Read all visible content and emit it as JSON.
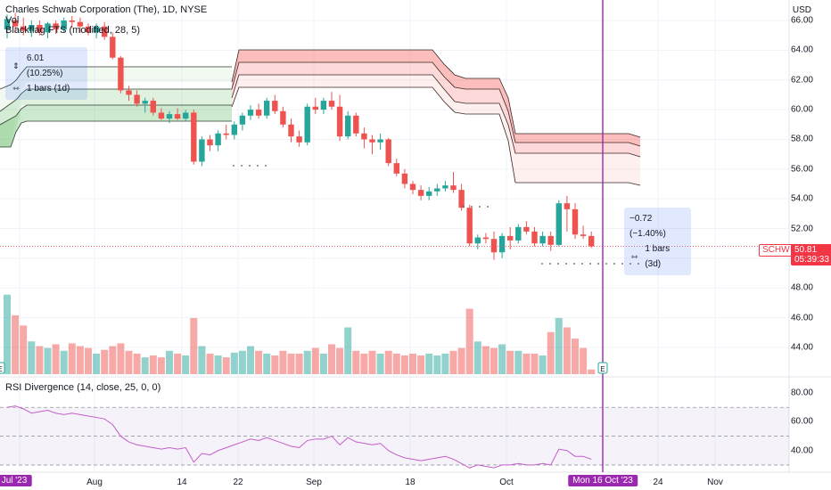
{
  "header": {
    "title": "Charles Schwab Corporation (The), 1D, NYSE",
    "vol_label": "Vol",
    "indicator": "Blackflag FTS (modified, 28, 5)",
    "rsi_label": "RSI Divergence (14, close, 25, 0, 0)",
    "currency": "USD"
  },
  "measure_top": {
    "change": "6.01 (10.25%)",
    "bars": "1 bars (1d)"
  },
  "measure_right": {
    "change": "−0.72 (−1.40%)",
    "bars": "1 bars (3d)"
  },
  "price_tag": {
    "symbol": "SCHW",
    "price": "50.81",
    "countdown": "05:39:33"
  },
  "earnings_marker": "E",
  "x_axis": {
    "labels": [
      "Jul '23",
      "Aug",
      "14",
      "22",
      "Sep",
      "18",
      "Oct",
      "Mon 16 Oct '23",
      "24",
      "Nov"
    ],
    "highlighted": "Mon 16 Oct '23"
  },
  "y_axis": {
    "price_ticks": [
      "66.00",
      "64.00",
      "62.00",
      "60.00",
      "58.00",
      "56.00",
      "54.00",
      "52.00",
      "48.00",
      "46.00",
      "44.00"
    ],
    "rsi_ticks": [
      "80.00",
      "60.00",
      "40.00"
    ]
  },
  "colors": {
    "up": "#26a69a",
    "down": "#ef5350",
    "highlight": "#9c27b0",
    "trail_green": "#4caf50",
    "trail_red": "#f44336"
  },
  "chart_data": {
    "type": "candlestick",
    "title": "Charles Schwab Corporation (The), 1D, NYSE",
    "ylabel": "USD",
    "ylim": [
      42,
      67
    ],
    "candles": [
      {
        "o": 65.4,
        "h": 66.4,
        "l": 64.8,
        "c": 66.1
      },
      {
        "o": 66.0,
        "h": 66.5,
        "l": 65.2,
        "c": 65.6
      },
      {
        "o": 65.6,
        "h": 66.2,
        "l": 65.0,
        "c": 65.3
      },
      {
        "o": 65.3,
        "h": 66.0,
        "l": 64.9,
        "c": 65.7
      },
      {
        "o": 65.7,
        "h": 66.0,
        "l": 65.0,
        "c": 65.2
      },
      {
        "o": 65.2,
        "h": 65.9,
        "l": 64.8,
        "c": 65.8
      },
      {
        "o": 65.8,
        "h": 66.0,
        "l": 65.1,
        "c": 65.4
      },
      {
        "o": 65.4,
        "h": 66.2,
        "l": 65.2,
        "c": 66.0
      },
      {
        "o": 66.0,
        "h": 66.3,
        "l": 65.5,
        "c": 65.9
      },
      {
        "o": 65.9,
        "h": 66.2,
        "l": 65.2,
        "c": 65.6
      },
      {
        "o": 65.6,
        "h": 65.8,
        "l": 65.0,
        "c": 65.2
      },
      {
        "o": 65.2,
        "h": 65.8,
        "l": 64.8,
        "c": 65.6
      },
      {
        "o": 65.6,
        "h": 65.9,
        "l": 64.7,
        "c": 64.9
      },
      {
        "o": 64.9,
        "h": 65.2,
        "l": 63.4,
        "c": 63.5
      },
      {
        "o": 63.5,
        "h": 63.6,
        "l": 61.1,
        "c": 61.3
      },
      {
        "o": 61.3,
        "h": 61.6,
        "l": 60.6,
        "c": 61.0
      },
      {
        "o": 61.0,
        "h": 61.3,
        "l": 60.2,
        "c": 60.4
      },
      {
        "o": 60.4,
        "h": 60.8,
        "l": 59.8,
        "c": 60.6
      },
      {
        "o": 60.6,
        "h": 60.8,
        "l": 59.6,
        "c": 59.8
      },
      {
        "o": 59.8,
        "h": 60.1,
        "l": 59.3,
        "c": 59.4
      },
      {
        "o": 59.4,
        "h": 59.9,
        "l": 59.1,
        "c": 59.7
      },
      {
        "o": 59.7,
        "h": 60.1,
        "l": 59.3,
        "c": 59.4
      },
      {
        "o": 59.4,
        "h": 60.0,
        "l": 59.2,
        "c": 59.8
      },
      {
        "o": 59.8,
        "h": 60.0,
        "l": 56.3,
        "c": 56.5
      },
      {
        "o": 56.5,
        "h": 58.2,
        "l": 56.2,
        "c": 58.0
      },
      {
        "o": 58.0,
        "h": 58.3,
        "l": 57.2,
        "c": 57.6
      },
      {
        "o": 57.6,
        "h": 58.6,
        "l": 57.2,
        "c": 58.4
      },
      {
        "o": 58.4,
        "h": 59.0,
        "l": 58.0,
        "c": 58.3
      },
      {
        "o": 58.3,
        "h": 59.2,
        "l": 58.0,
        "c": 59.0
      },
      {
        "o": 59.0,
        "h": 59.8,
        "l": 58.6,
        "c": 59.6
      },
      {
        "o": 59.6,
        "h": 60.3,
        "l": 59.3,
        "c": 60.0
      },
      {
        "o": 60.0,
        "h": 60.4,
        "l": 59.4,
        "c": 59.6
      },
      {
        "o": 59.6,
        "h": 60.8,
        "l": 59.4,
        "c": 60.6
      },
      {
        "o": 60.6,
        "h": 61.0,
        "l": 59.7,
        "c": 59.9
      },
      {
        "o": 59.9,
        "h": 60.2,
        "l": 58.8,
        "c": 59.0
      },
      {
        "o": 59.0,
        "h": 59.4,
        "l": 57.8,
        "c": 58.2
      },
      {
        "o": 58.2,
        "h": 58.6,
        "l": 57.5,
        "c": 57.8
      },
      {
        "o": 57.8,
        "h": 60.4,
        "l": 57.6,
        "c": 60.2
      },
      {
        "o": 60.2,
        "h": 60.8,
        "l": 59.7,
        "c": 60.0
      },
      {
        "o": 60.0,
        "h": 60.8,
        "l": 59.7,
        "c": 60.6
      },
      {
        "o": 60.6,
        "h": 61.2,
        "l": 60.0,
        "c": 60.2
      },
      {
        "o": 60.2,
        "h": 61.0,
        "l": 57.9,
        "c": 58.2
      },
      {
        "o": 58.2,
        "h": 59.9,
        "l": 58.0,
        "c": 59.6
      },
      {
        "o": 59.6,
        "h": 59.8,
        "l": 58.2,
        "c": 58.4
      },
      {
        "o": 58.4,
        "h": 58.8,
        "l": 57.4,
        "c": 58.0
      },
      {
        "o": 58.0,
        "h": 58.3,
        "l": 57.0,
        "c": 57.8
      },
      {
        "o": 57.8,
        "h": 58.4,
        "l": 57.3,
        "c": 58.0
      },
      {
        "o": 58.0,
        "h": 58.1,
        "l": 56.2,
        "c": 56.4
      },
      {
        "o": 56.4,
        "h": 56.7,
        "l": 55.5,
        "c": 55.7
      },
      {
        "o": 55.7,
        "h": 56.0,
        "l": 54.7,
        "c": 55.0
      },
      {
        "o": 55.0,
        "h": 55.2,
        "l": 54.3,
        "c": 54.6
      },
      {
        "o": 54.6,
        "h": 54.9,
        "l": 53.9,
        "c": 54.2
      },
      {
        "o": 54.2,
        "h": 54.8,
        "l": 53.9,
        "c": 54.5
      },
      {
        "o": 54.5,
        "h": 55.0,
        "l": 54.2,
        "c": 54.7
      },
      {
        "o": 54.7,
        "h": 55.2,
        "l": 54.5,
        "c": 54.9
      },
      {
        "o": 54.9,
        "h": 55.8,
        "l": 54.4,
        "c": 54.6
      },
      {
        "o": 54.6,
        "h": 55.0,
        "l": 53.2,
        "c": 53.4
      },
      {
        "o": 53.4,
        "h": 53.6,
        "l": 50.8,
        "c": 51.0
      },
      {
        "o": 51.0,
        "h": 51.6,
        "l": 50.6,
        "c": 51.4
      },
      {
        "o": 51.4,
        "h": 51.7,
        "l": 51.0,
        "c": 51.3
      },
      {
        "o": 51.3,
        "h": 51.8,
        "l": 49.9,
        "c": 50.4
      },
      {
        "o": 50.4,
        "h": 51.7,
        "l": 50.0,
        "c": 51.5
      },
      {
        "o": 51.5,
        "h": 52.1,
        "l": 50.6,
        "c": 51.2
      },
      {
        "o": 51.2,
        "h": 52.3,
        "l": 51.0,
        "c": 52.1
      },
      {
        "o": 52.1,
        "h": 52.5,
        "l": 51.6,
        "c": 51.8
      },
      {
        "o": 51.8,
        "h": 52.1,
        "l": 50.8,
        "c": 51.0
      },
      {
        "o": 51.0,
        "h": 51.8,
        "l": 50.8,
        "c": 51.5
      },
      {
        "o": 51.5,
        "h": 51.8,
        "l": 50.5,
        "c": 50.9
      },
      {
        "o": 50.9,
        "h": 53.9,
        "l": 50.8,
        "c": 53.7
      },
      {
        "o": 53.7,
        "h": 54.2,
        "l": 51.8,
        "c": 53.3
      },
      {
        "o": 53.3,
        "h": 53.7,
        "l": 51.3,
        "c": 51.6
      },
      {
        "o": 51.6,
        "h": 52.2,
        "l": 51.3,
        "c": 51.5
      },
      {
        "o": 51.5,
        "h": 51.8,
        "l": 50.7,
        "c": 50.8
      }
    ],
    "volume": [
      0.85,
      0.63,
      0.52,
      0.35,
      0.3,
      0.28,
      0.32,
      0.25,
      0.33,
      0.3,
      0.28,
      0.22,
      0.26,
      0.3,
      0.33,
      0.25,
      0.22,
      0.18,
      0.2,
      0.18,
      0.25,
      0.22,
      0.2,
      0.6,
      0.3,
      0.22,
      0.2,
      0.18,
      0.23,
      0.25,
      0.3,
      0.25,
      0.22,
      0.2,
      0.25,
      0.22,
      0.22,
      0.25,
      0.28,
      0.22,
      0.32,
      0.28,
      0.5,
      0.25,
      0.22,
      0.25,
      0.22,
      0.25,
      0.22,
      0.2,
      0.22,
      0.2,
      0.22,
      0.2,
      0.22,
      0.25,
      0.28,
      0.7,
      0.35,
      0.3,
      0.28,
      0.32,
      0.25,
      0.25,
      0.22,
      0.22,
      0.2,
      0.45,
      0.6,
      0.5,
      0.38,
      0.28,
      0.05
    ],
    "rsi_ylim": [
      25,
      85
    ],
    "rsi": [
      70,
      71,
      69,
      66,
      67,
      68,
      66,
      65,
      66,
      65,
      64,
      63,
      62,
      58,
      50,
      46,
      44,
      43,
      42,
      41,
      42,
      41,
      42,
      32,
      38,
      37,
      40,
      42,
      44,
      46,
      48,
      47,
      49,
      47,
      45,
      43,
      42,
      47,
      48,
      48,
      50,
      44,
      49,
      46,
      45,
      44,
      45,
      40,
      37,
      35,
      34,
      33,
      34,
      35,
      36,
      34,
      31,
      28,
      30,
      29,
      28,
      30,
      30,
      31,
      30,
      30,
      31,
      30,
      41,
      40,
      36,
      36,
      34
    ],
    "rsi_bands": [
      30,
      50,
      70
    ],
    "trail_green_upper": [
      62.4,
      61.2,
      61.2,
      61.2
    ],
    "trail_red_lower": [
      55.0
    ],
    "earnings_index": 68
  }
}
